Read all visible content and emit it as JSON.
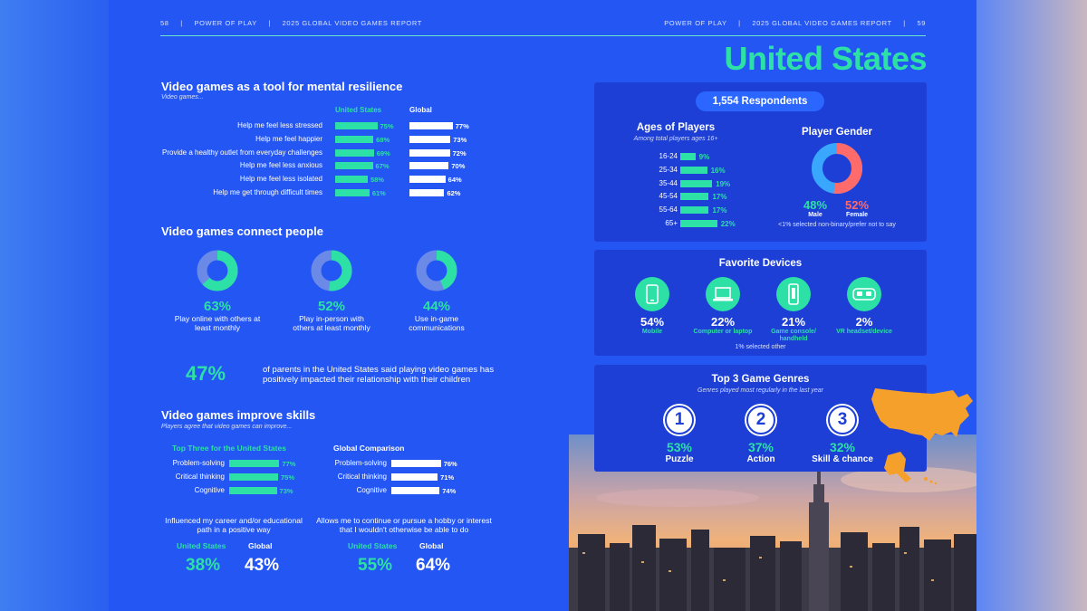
{
  "header": {
    "left_page": "58",
    "left_title": "POWER OF PLAY",
    "left_report": "2025 GLOBAL VIDEO GAMES REPORT",
    "right_title": "POWER OF PLAY",
    "right_report": "2025 GLOBAL VIDEO GAMES REPORT",
    "right_page": "59"
  },
  "country_title": "United States",
  "mental": {
    "title": "Video games as a tool for mental resilience",
    "subtitle": "Video games...",
    "col_us": "United States",
    "col_global": "Global",
    "rows": [
      {
        "label": "Help me feel less stressed",
        "us": 75,
        "us_text": "75%",
        "global": 77,
        "global_text": "77%"
      },
      {
        "label": "Help me feel happier",
        "us": 68,
        "us_text": "68%",
        "global": 73,
        "global_text": "73%"
      },
      {
        "label": "Provide a healthy outlet from everyday challenges",
        "us": 69,
        "us_text": "69%",
        "global": 72,
        "global_text": "72%"
      },
      {
        "label": "Help me feel less anxious",
        "us": 67,
        "us_text": "67%",
        "global": 70,
        "global_text": "70%"
      },
      {
        "label": "Help me feel less isolated",
        "us": 58,
        "us_text": "58%",
        "global": 64,
        "global_text": "64%"
      },
      {
        "label": "Help me get through difficult times",
        "us": 61,
        "us_text": "61%",
        "global": 62,
        "global_text": "62%"
      }
    ]
  },
  "connect": {
    "title": "Video games connect people",
    "items": [
      {
        "value": 63,
        "pct": "63%",
        "caption": "Play online with others at least monthly"
      },
      {
        "value": 52,
        "pct": "52%",
        "caption": "Play in-person with others at least monthly"
      },
      {
        "value": 44,
        "pct": "44%",
        "caption": "Use in-game communications"
      }
    ]
  },
  "parents": {
    "pct": "47%",
    "text": "of parents in the United States said playing video games has positively impacted their relationship with their children"
  },
  "skills": {
    "title": "Video games improve skills",
    "subtitle": "Players agree that video games can improve...",
    "us_head": "Top Three for the United States",
    "global_head": "Global Comparison",
    "us_rows": [
      {
        "label": "Problem-solving",
        "value": 77,
        "text": "77%"
      },
      {
        "label": "Critical thinking",
        "value": 75,
        "text": "75%"
      },
      {
        "label": "Cognitive",
        "value": 73,
        "text": "73%"
      }
    ],
    "global_rows": [
      {
        "label": "Problem-solving",
        "value": 76,
        "text": "76%"
      },
      {
        "label": "Critical thinking",
        "value": 71,
        "text": "71%"
      },
      {
        "label": "Cognitive",
        "value": 74,
        "text": "74%"
      }
    ],
    "career": {
      "text": "Influenced my career and/or educational path in a positive way",
      "us_label": "United States",
      "us_pct": "38%",
      "global_label": "Global",
      "global_pct": "43%"
    },
    "hobby": {
      "text": "Allows me to continue or pursue a hobby or interest that I wouldn't otherwise be able to do",
      "us_label": "United States",
      "us_pct": "55%",
      "global_label": "Global",
      "global_pct": "64%"
    }
  },
  "demographics": {
    "respondents": "1,554 Respondents",
    "ages_title": "Ages of Players",
    "ages_sub": "Among total players ages 16+",
    "ages": [
      {
        "label": "16-24",
        "value": 9,
        "text": "9%"
      },
      {
        "label": "25-34",
        "value": 16,
        "text": "16%"
      },
      {
        "label": "35-44",
        "value": 19,
        "text": "19%"
      },
      {
        "label": "45-54",
        "value": 17,
        "text": "17%"
      },
      {
        "label": "55-64",
        "value": 17,
        "text": "17%"
      },
      {
        "label": "65+",
        "value": 22,
        "text": "22%"
      }
    ],
    "gender_title": "Player Gender",
    "male_pct": "48%",
    "male_label": "Male",
    "male_value": 48,
    "female_pct": "52%",
    "female_label": "Female",
    "female_value": 52,
    "gender_note": "<1% selected non-binary/prefer not to say"
  },
  "devices": {
    "title": "Favorite Devices",
    "items": [
      {
        "pct": "54%",
        "label": "Mobile",
        "icon": "mobile-phone-icon"
      },
      {
        "pct": "22%",
        "label": "Computer or laptop",
        "icon": "laptop-icon"
      },
      {
        "pct": "21%",
        "label": "Game console/ handheld",
        "icon": "game-console-icon"
      },
      {
        "pct": "2%",
        "label": "VR headset/device",
        "icon": "vr-headset-icon"
      }
    ],
    "note": "1% selected other"
  },
  "genres": {
    "title": "Top 3 Game Genres",
    "subtitle": "Genres played most regularly in the last year",
    "items": [
      {
        "rank": "1",
        "pct": "53%",
        "label": "Puzzle"
      },
      {
        "rank": "2",
        "pct": "37%",
        "label": "Action"
      },
      {
        "rank": "3",
        "pct": "32%",
        "label": "Skill & chance"
      }
    ]
  },
  "colors": {
    "accent": "#2de0a6",
    "page": "#2456f4",
    "panel": "#1d3fd6",
    "female": "#ff6a6a",
    "male": "#3aa7ff",
    "map": "#f6a02c"
  }
}
